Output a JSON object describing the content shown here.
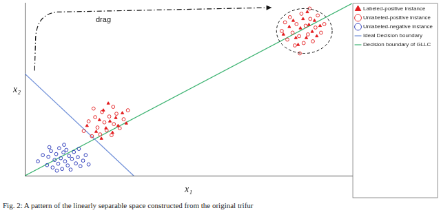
{
  "chart_data": {
    "type": "scatter",
    "x_label": "x₁",
    "y_label": "x₂",
    "annotation": "drag",
    "caption": "Fig. 2: A pattern of the linearly separable space constructed from the original trifur",
    "xlim": [
      0,
      100
    ],
    "ylim": [
      0,
      50
    ],
    "tick_labels": false,
    "grid": false,
    "legend": "top-right",
    "series": [
      {
        "name": "Labeled-positive instance",
        "color": "#e31a1c",
        "marker": "triangle",
        "x": [
          19,
          21.8,
          22.8,
          24,
          24.8,
          26,
          26.8,
          27.8,
          28.5,
          29.8,
          31,
          23.4,
          25.5,
          79,
          80.8,
          82,
          82.8,
          84.2,
          85,
          86,
          86.8,
          87.8,
          88.5,
          89.2,
          90.2,
          83.5,
          86.3
        ],
        "values": [
          14.5,
          12.8,
          16.2,
          19,
          13.8,
          15.8,
          12.5,
          16.8,
          14.5,
          18.2,
          15.2,
          10.8,
          21,
          41,
          43.2,
          45,
          40,
          42.8,
          45.5,
          40,
          43.8,
          41.8,
          45,
          40.5,
          43.5,
          38,
          47.5
        ]
      },
      {
        "name": "Unlabeled-positive instance",
        "color": "#e31a1c",
        "marker": "circle_open",
        "x": [
          18,
          19.5,
          20.5,
          21.5,
          22.2,
          23,
          23.6,
          24.3,
          25,
          25.8,
          26.5,
          27.2,
          28,
          29,
          30.2,
          31.5,
          21,
          27,
          78.5,
          79.5,
          80.2,
          81,
          81.8,
          82.5,
          83,
          83.8,
          84.5,
          85.2,
          85.8,
          86.5,
          87.2,
          88,
          88.8,
          89.5,
          90.5,
          91.5,
          84,
          87
        ],
        "values": [
          13,
          15.8,
          11.5,
          17,
          14,
          12,
          18.5,
          15.5,
          13.2,
          17.2,
          11.8,
          15,
          18,
          13.8,
          16.4,
          19,
          19.5,
          20,
          42,
          44.5,
          39.5,
          46,
          41.5,
          37.8,
          44,
          40.5,
          47,
          38.5,
          43.5,
          41,
          45.5,
          39,
          43,
          46.5,
          41.5,
          44,
          35.5,
          48.5
        ]
      },
      {
        "name": "Unlabeled-negative instance",
        "color": "#1f2fb5",
        "marker": "circle_open",
        "x": [
          4,
          5.5,
          6.8,
          7.2,
          8,
          8.5,
          9.1,
          9.6,
          10.2,
          10.5,
          11,
          11.4,
          11.8,
          12.3,
          12.7,
          13.1,
          13.5,
          14,
          14.4,
          15,
          15.6,
          16.2,
          17,
          17.8,
          18.6,
          19.5,
          9.8,
          12,
          7.5,
          16.5
        ],
        "values": [
          4.2,
          6,
          3.1,
          5.5,
          7.2,
          2.4,
          4.6,
          6.3,
          3.5,
          8,
          5.1,
          2,
          6.8,
          4.2,
          7.5,
          3,
          5.8,
          1.8,
          4.9,
          6.9,
          3.6,
          5.4,
          2.8,
          4.4,
          6,
          3.3,
          1.5,
          9,
          8.3,
          7.8
        ]
      },
      {
        "name": "Ideal Decision boundary",
        "color": "#6f8fd8",
        "type": "line",
        "line_style": "solid",
        "x": [
          0,
          33.3
        ],
        "values": [
          29.6,
          0
        ]
      },
      {
        "name": "Decision boundary of GLLC",
        "color": "#3cb371",
        "type": "line",
        "line_style": "solid",
        "x": [
          0,
          100
        ],
        "values": [
          0,
          50
        ]
      }
    ]
  }
}
